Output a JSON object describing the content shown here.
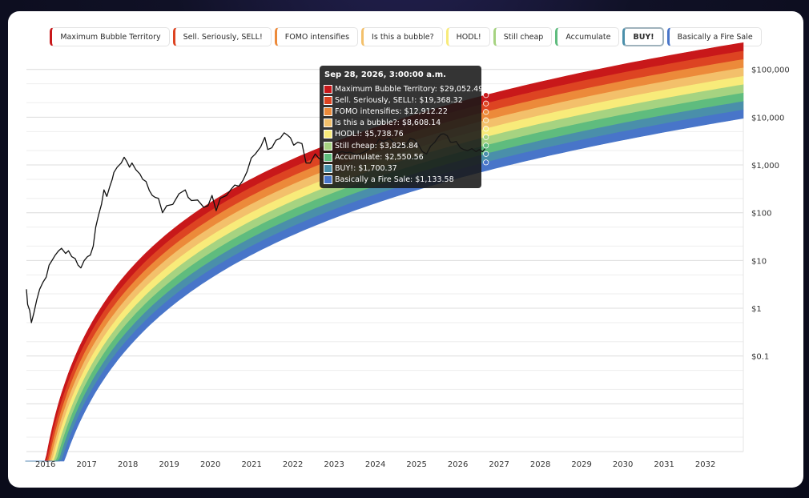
{
  "legend": [
    {
      "label": "Maximum Bubble Territory",
      "color": "#c8181a",
      "active": false
    },
    {
      "label": "Sell. Seriously, SELL!",
      "color": "#dd4422",
      "active": false
    },
    {
      "label": "FOMO intensifies",
      "color": "#ec8a3a",
      "active": false
    },
    {
      "label": "Is this a bubble?",
      "color": "#f3c06b",
      "active": false
    },
    {
      "label": "HODL!",
      "color": "#f8eb7a",
      "active": false
    },
    {
      "label": "Still cheap",
      "color": "#a6d381",
      "active": false
    },
    {
      "label": "Accumulate",
      "color": "#5fbc7e",
      "active": false
    },
    {
      "label": "BUY!",
      "color": "#4a8faa",
      "active": true
    },
    {
      "label": "Basically a Fire Sale",
      "color": "#4875c9",
      "active": false
    }
  ],
  "tooltip": {
    "title": "Sep 28, 2026, 3:00:00 a.m.",
    "rows": [
      {
        "label": "Maximum Bubble Territory: $29,052.49",
        "color": "#c8181a"
      },
      {
        "label": "Sell. Seriously, SELL!: $19,368.32",
        "color": "#dd4422"
      },
      {
        "label": "FOMO intensifies: $12,912.22",
        "color": "#ec8a3a"
      },
      {
        "label": "Is this a bubble?: $8,608.14",
        "color": "#f3c06b"
      },
      {
        "label": "HODL!: $5,738.76",
        "color": "#f8eb7a"
      },
      {
        "label": "Still cheap: $3,825.84",
        "color": "#a6d381"
      },
      {
        "label": "Accumulate: $2,550.56",
        "color": "#5fbc7e"
      },
      {
        "label": "BUY!: $1,700.37",
        "color": "#4a8faa"
      },
      {
        "label": "Basically a Fire Sale: $1,133.58",
        "color": "#4875c9"
      }
    ]
  },
  "chart_data": {
    "type": "area",
    "y_scale": "log",
    "ylim": [
      0.001,
      120000
    ],
    "xlim": [
      2015.6,
      2032.98
    ],
    "x_tick_labels": [
      "2016",
      "2017",
      "2018",
      "2019",
      "2020",
      "2021",
      "2022",
      "2023",
      "2024",
      "2025",
      "2026",
      "2027",
      "2028",
      "2029",
      "2030",
      "2031",
      "2032"
    ],
    "y_ticks": [
      {
        "value": 100000,
        "label": "$100,000"
      },
      {
        "value": 10000,
        "label": "$10,000"
      },
      {
        "value": 1000,
        "label": "$1,000"
      },
      {
        "value": 100,
        "label": "$100"
      },
      {
        "value": 10,
        "label": "$10"
      },
      {
        "value": 1,
        "label": "$1"
      },
      {
        "value": 0.1,
        "label": "$0.1"
      }
    ],
    "grid": true,
    "legend_position": "top",
    "bands": [
      {
        "name": "Maximum Bubble Territory",
        "color": "#c8181a"
      },
      {
        "name": "Sell. Seriously, SELL!",
        "color": "#dd4422"
      },
      {
        "name": "FOMO intensifies",
        "color": "#ec8a3a"
      },
      {
        "name": "Is this a bubble?",
        "color": "#f3c06b"
      },
      {
        "name": "HODL!",
        "color": "#f8eb7a"
      },
      {
        "name": "Still cheap",
        "color": "#a6d381"
      },
      {
        "name": "Accumulate",
        "color": "#5fbc7e"
      },
      {
        "name": "BUY!",
        "color": "#4a8faa"
      },
      {
        "name": "Basically a Fire Sale",
        "color": "#4875c9"
      }
    ],
    "band_values_at": {
      "x": 2026.74,
      "values": [
        29052.49,
        19368.32,
        12912.22,
        8608.14,
        5738.76,
        3825.84,
        2550.56,
        1700.37,
        1133.58
      ]
    },
    "price_series": {
      "color": "#111111",
      "points": [
        [
          2015.6,
          2.5
        ],
        [
          2015.63,
          1.2
        ],
        [
          2015.68,
          0.9
        ],
        [
          2015.72,
          0.5
        ],
        [
          2015.78,
          0.8
        ],
        [
          2015.85,
          1.5
        ],
        [
          2015.92,
          2.5
        ],
        [
          2016.0,
          3.5
        ],
        [
          2016.08,
          4.5
        ],
        [
          2016.15,
          8
        ],
        [
          2016.22,
          10
        ],
        [
          2016.3,
          13
        ],
        [
          2016.38,
          16
        ],
        [
          2016.45,
          18
        ],
        [
          2016.55,
          14
        ],
        [
          2016.62,
          16
        ],
        [
          2016.7,
          12
        ],
        [
          2016.78,
          11
        ],
        [
          2016.85,
          8
        ],
        [
          2016.92,
          7
        ],
        [
          2017.0,
          10
        ],
        [
          2017.08,
          12
        ],
        [
          2017.15,
          13
        ],
        [
          2017.22,
          20
        ],
        [
          2017.28,
          50
        ],
        [
          2017.35,
          90
        ],
        [
          2017.42,
          150
        ],
        [
          2017.48,
          300
        ],
        [
          2017.55,
          220
        ],
        [
          2017.62,
          350
        ],
        [
          2017.68,
          500
        ],
        [
          2017.72,
          700
        ],
        [
          2017.8,
          900
        ],
        [
          2017.9,
          1100
        ],
        [
          2017.97,
          1450
        ],
        [
          2018.03,
          1200
        ],
        [
          2018.1,
          900
        ],
        [
          2018.16,
          1100
        ],
        [
          2018.25,
          800
        ],
        [
          2018.35,
          650
        ],
        [
          2018.42,
          500
        ],
        [
          2018.5,
          450
        ],
        [
          2018.58,
          290
        ],
        [
          2018.65,
          230
        ],
        [
          2018.72,
          210
        ],
        [
          2018.8,
          200
        ],
        [
          2018.9,
          100
        ],
        [
          2019.0,
          140
        ],
        [
          2019.15,
          150
        ],
        [
          2019.3,
          250
        ],
        [
          2019.45,
          300
        ],
        [
          2019.52,
          210
        ],
        [
          2019.6,
          180
        ],
        [
          2019.75,
          185
        ],
        [
          2019.9,
          130
        ],
        [
          2020.0,
          140
        ],
        [
          2020.1,
          230
        ],
        [
          2020.2,
          110
        ],
        [
          2020.3,
          200
        ],
        [
          2020.45,
          230
        ],
        [
          2020.55,
          300
        ],
        [
          2020.65,
          380
        ],
        [
          2020.75,
          360
        ],
        [
          2020.85,
          480
        ],
        [
          2020.95,
          730
        ],
        [
          2021.05,
          1400
        ],
        [
          2021.15,
          1700
        ],
        [
          2021.28,
          2400
        ],
        [
          2021.38,
          3800
        ],
        [
          2021.45,
          2100
        ],
        [
          2021.55,
          2300
        ],
        [
          2021.65,
          3300
        ],
        [
          2021.75,
          3600
        ],
        [
          2021.85,
          4700
        ],
        [
          2021.93,
          4200
        ],
        [
          2022.0,
          3700
        ],
        [
          2022.08,
          2600
        ],
        [
          2022.18,
          3000
        ],
        [
          2022.28,
          2800
        ],
        [
          2022.38,
          1100
        ],
        [
          2022.48,
          1100
        ],
        [
          2022.6,
          1700
        ],
        [
          2022.7,
          1350
        ],
        [
          2022.8,
          1280
        ],
        [
          2022.9,
          1200
        ],
        [
          2022.98,
          1250
        ],
        [
          2023.05,
          1600
        ],
        [
          2023.15,
          1750
        ],
        [
          2023.25,
          1900
        ],
        [
          2023.35,
          1800
        ],
        [
          2023.45,
          1850
        ],
        [
          2023.6,
          1650
        ],
        [
          2023.75,
          1800
        ],
        [
          2023.85,
          2000
        ],
        [
          2023.95,
          2300
        ],
        [
          2024.05,
          2400
        ],
        [
          2024.15,
          3500
        ],
        [
          2024.25,
          3100
        ],
        [
          2024.4,
          3600
        ],
        [
          2024.5,
          3000
        ],
        [
          2024.6,
          2500
        ],
        [
          2024.7,
          2400
        ],
        [
          2024.8,
          2600
        ],
        [
          2024.9,
          3600
        ],
        [
          2025.0,
          3400
        ],
        [
          2025.1,
          2700
        ],
        [
          2025.2,
          1900
        ],
        [
          2025.3,
          1700
        ],
        [
          2025.4,
          2500
        ],
        [
          2025.5,
          3000
        ],
        [
          2025.58,
          3800
        ],
        [
          2025.65,
          4400
        ],
        [
          2025.72,
          4500
        ],
        [
          2025.8,
          4100
        ],
        [
          2025.88,
          3000
        ],
        [
          2025.95,
          3000
        ],
        [
          2026.02,
          3100
        ],
        [
          2026.12,
          2300
        ],
        [
          2026.2,
          2100
        ],
        [
          2026.3,
          2000
        ],
        [
          2026.4,
          2200
        ],
        [
          2026.5,
          1900
        ],
        [
          2026.58,
          2100
        ],
        [
          2026.66,
          1900
        ],
        [
          2026.72,
          2200
        ]
      ]
    }
  }
}
